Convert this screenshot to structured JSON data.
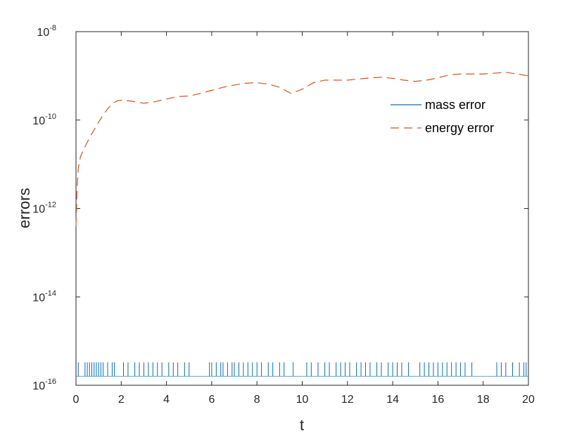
{
  "chart_data": {
    "type": "line",
    "xlabel": "t",
    "ylabel": "errors",
    "xlim": [
      0,
      20
    ],
    "ylim": [
      1e-16,
      1e-08
    ],
    "yscale": "log",
    "x_ticks": [
      0,
      2,
      4,
      6,
      8,
      10,
      12,
      14,
      16,
      18,
      20
    ],
    "y_ticks": [
      {
        "value": 1e-16,
        "base": "10",
        "exp": "-16"
      },
      {
        "value": 1e-14,
        "base": "10",
        "exp": "-14"
      },
      {
        "value": 1e-12,
        "base": "10",
        "exp": "-12"
      },
      {
        "value": 1e-10,
        "base": "10",
        "exp": "-10"
      },
      {
        "value": 1e-08,
        "base": "10",
        "exp": "-8"
      }
    ],
    "grid": false,
    "legend_position": "top-right",
    "series": [
      {
        "name": "mass error",
        "color": "#0072BD",
        "style": "solid",
        "description": "spiky noise alternating between ~1.6e-16 and ~3.3e-16",
        "x": [
          0.1,
          0.4,
          0.5,
          0.6,
          0.7,
          0.8,
          0.9,
          1.0,
          1.1,
          1.2,
          1.4,
          1.6,
          1.7,
          2.1,
          2.3,
          2.6,
          2.8,
          3.0,
          3.2,
          3.4,
          3.6,
          3.8,
          4.1,
          4.3,
          4.5,
          4.8,
          5.0,
          5.9,
          6.0,
          6.2,
          6.4,
          6.5,
          6.7,
          6.9,
          7.0,
          7.2,
          7.4,
          7.6,
          7.8,
          8.0,
          8.2,
          8.5,
          8.7,
          9.0,
          9.2,
          9.6,
          10.2,
          10.4,
          10.7,
          11.0,
          11.2,
          11.5,
          11.7,
          11.9,
          12.1,
          12.4,
          12.6,
          12.8,
          13.0,
          13.3,
          13.5,
          13.8,
          14.0,
          14.2,
          14.4,
          14.7,
          15.2,
          15.4,
          15.6,
          15.8,
          16.0,
          16.2,
          16.4,
          16.6,
          16.8,
          17.0,
          17.2,
          17.5,
          18.6,
          18.8,
          19.0,
          19.3,
          19.6,
          19.8,
          19.9
        ],
        "y_low": 1.6e-16,
        "y_high": 3.3e-16
      },
      {
        "name": "energy error",
        "color": "#D95319",
        "style": "dashed",
        "x": [
          0,
          0.05,
          0.1,
          0.2,
          0.4,
          0.6,
          0.8,
          1.0,
          1.2,
          1.4,
          1.6,
          1.8,
          2.0,
          2.4,
          3.0,
          3.5,
          4.0,
          4.5,
          5.0,
          5.5,
          6.0,
          6.5,
          7.0,
          7.5,
          8.0,
          8.5,
          9.0,
          9.5,
          10.0,
          10.5,
          11.0,
          12.0,
          12.5,
          13.0,
          13.5,
          14.0,
          14.5,
          15.0,
          15.5,
          16.0,
          16.5,
          17.0,
          18.0,
          18.5,
          19.0,
          19.5,
          20.0
        ],
        "y": [
          4e-13,
          3e-12,
          8e-12,
          1.5e-11,
          2.5e-11,
          4e-11,
          6e-11,
          9e-11,
          1.3e-10,
          1.8e-10,
          2.3e-10,
          2.7e-10,
          2.8e-10,
          2.7e-10,
          2.4e-10,
          2.6e-10,
          3e-10,
          3.4e-10,
          3.5e-10,
          4e-10,
          4.7e-10,
          5.5e-10,
          6.2e-10,
          6.8e-10,
          7e-10,
          6.5e-10,
          5.5e-10,
          4e-10,
          5e-10,
          7e-10,
          8e-10,
          8e-10,
          8.5e-10,
          9e-10,
          9.3e-10,
          8.8e-10,
          8e-10,
          7.5e-10,
          8e-10,
          9e-10,
          1.05e-09,
          1.1e-09,
          1.1e-09,
          1.15e-09,
          1.2e-09,
          1.1e-09,
          1e-09
        ]
      }
    ]
  }
}
